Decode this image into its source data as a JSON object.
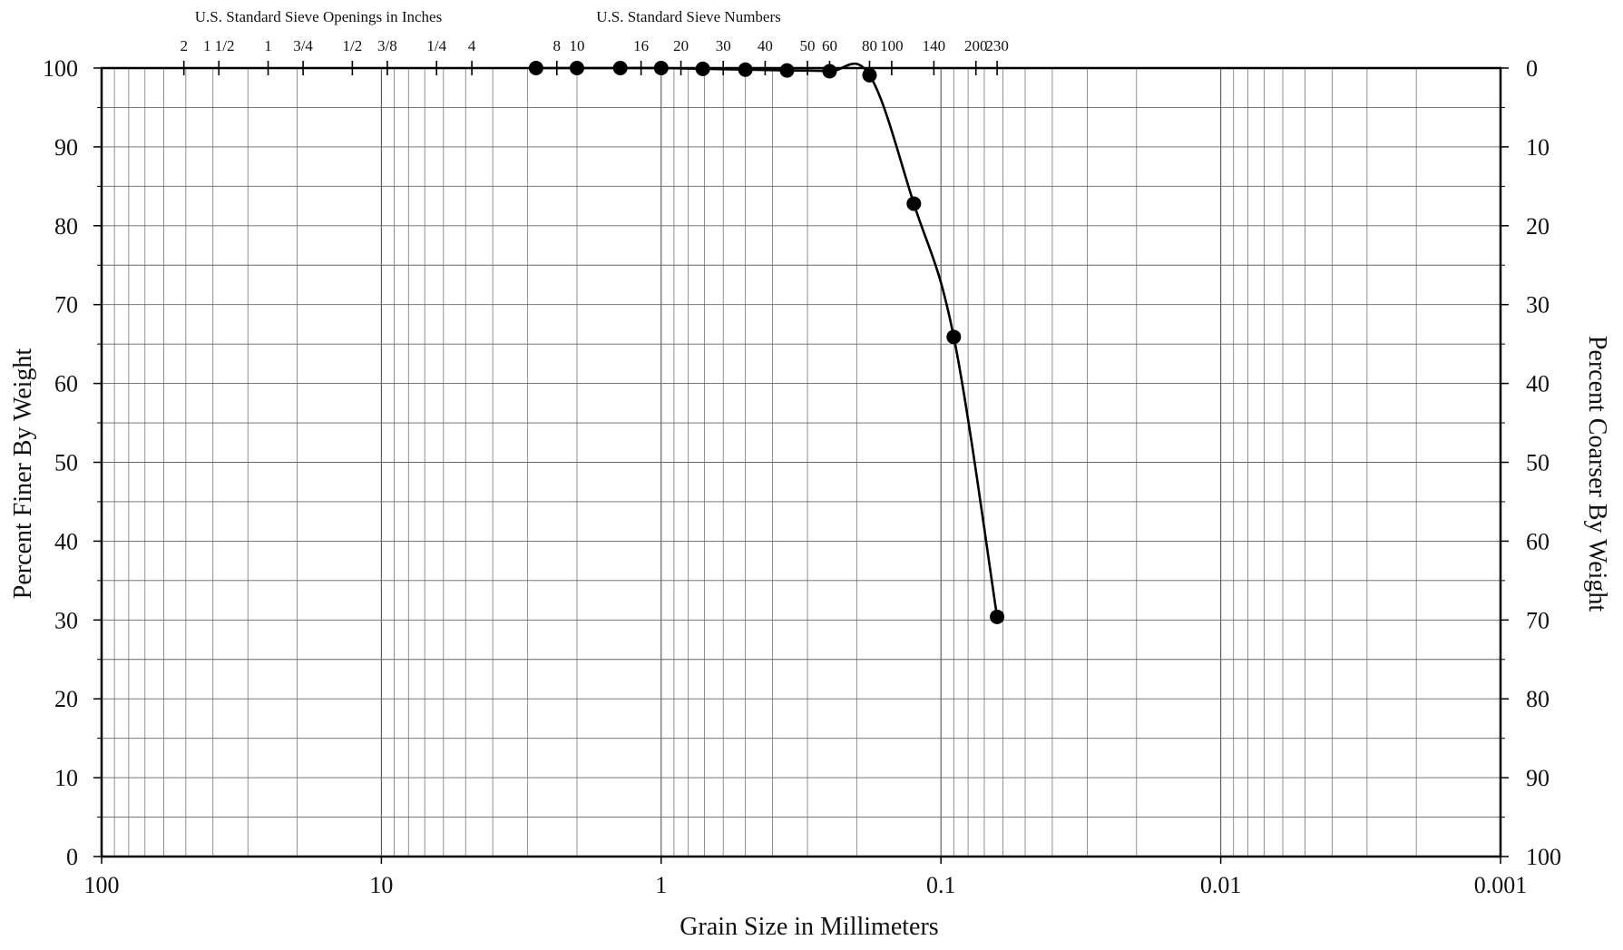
{
  "chart_data": {
    "type": "line",
    "x_scale": "log",
    "x_reversed": true,
    "xlim": [
      100,
      0.001
    ],
    "ylim": [
      0,
      100
    ],
    "grid": true,
    "xlabel": "Grain Size in Millimeters",
    "ylabel_left": "Percent Finer By Weight",
    "ylabel_right": "Percent Coarser By Weight",
    "x_ticks": [
      {
        "value": 100,
        "label": "100"
      },
      {
        "value": 10,
        "label": "10"
      },
      {
        "value": 1,
        "label": "1"
      },
      {
        "value": 0.1,
        "label": "0.1"
      },
      {
        "value": 0.01,
        "label": "0.01"
      },
      {
        "value": 0.001,
        "label": "0.001"
      }
    ],
    "y_ticks_left": [
      "0",
      "10",
      "20",
      "30",
      "40",
      "50",
      "60",
      "70",
      "80",
      "90",
      "100"
    ],
    "y_ticks_right": [
      "100",
      "90",
      "80",
      "70",
      "60",
      "50",
      "40",
      "30",
      "20",
      "10",
      "0"
    ],
    "top_axis": {
      "inches_title": "U.S. Standard Sieve Openings in Inches",
      "numbers_title": "U.S. Standard Sieve Numbers",
      "inch_sieves": [
        {
          "label": "2",
          "mm": 50.8
        },
        {
          "label": "1 1/2",
          "mm": 38.1
        },
        {
          "label": "1",
          "mm": 25.4
        },
        {
          "label": "3/4",
          "mm": 19.05
        },
        {
          "label": "1/2",
          "mm": 12.7
        },
        {
          "label": "3/8",
          "mm": 9.525
        },
        {
          "label": "1/4",
          "mm": 6.35
        },
        {
          "label": "4",
          "mm": 4.75
        }
      ],
      "number_sieves": [
        {
          "label": "8",
          "mm": 2.36
        },
        {
          "label": "10",
          "mm": 2.0
        },
        {
          "label": "16",
          "mm": 1.18
        },
        {
          "label": "20",
          "mm": 0.85
        },
        {
          "label": "30",
          "mm": 0.6
        },
        {
          "label": "40",
          "mm": 0.425
        },
        {
          "label": "50",
          "mm": 0.3
        },
        {
          "label": "60",
          "mm": 0.25
        },
        {
          "label": "80",
          "mm": 0.18
        },
        {
          "label": "100",
          "mm": 0.15
        },
        {
          "label": "140",
          "mm": 0.106
        },
        {
          "label": "200",
          "mm": 0.075
        },
        {
          "label": "230",
          "mm": 0.063
        }
      ]
    },
    "series": [
      {
        "points": [
          {
            "x": 2.8,
            "y": 100
          },
          {
            "x": 2.0,
            "y": 100
          },
          {
            "x": 1.4,
            "y": 100
          },
          {
            "x": 1.0,
            "y": 100
          },
          {
            "x": 0.71,
            "y": 99.9
          },
          {
            "x": 0.5,
            "y": 99.8
          },
          {
            "x": 0.355,
            "y": 99.7
          },
          {
            "x": 0.25,
            "y": 99.6
          },
          {
            "x": 0.18,
            "y": 99.1
          },
          {
            "x": 0.125,
            "y": 82.8
          },
          {
            "x": 0.09,
            "y": 65.9
          },
          {
            "x": 0.063,
            "y": 30.4
          }
        ]
      }
    ]
  }
}
